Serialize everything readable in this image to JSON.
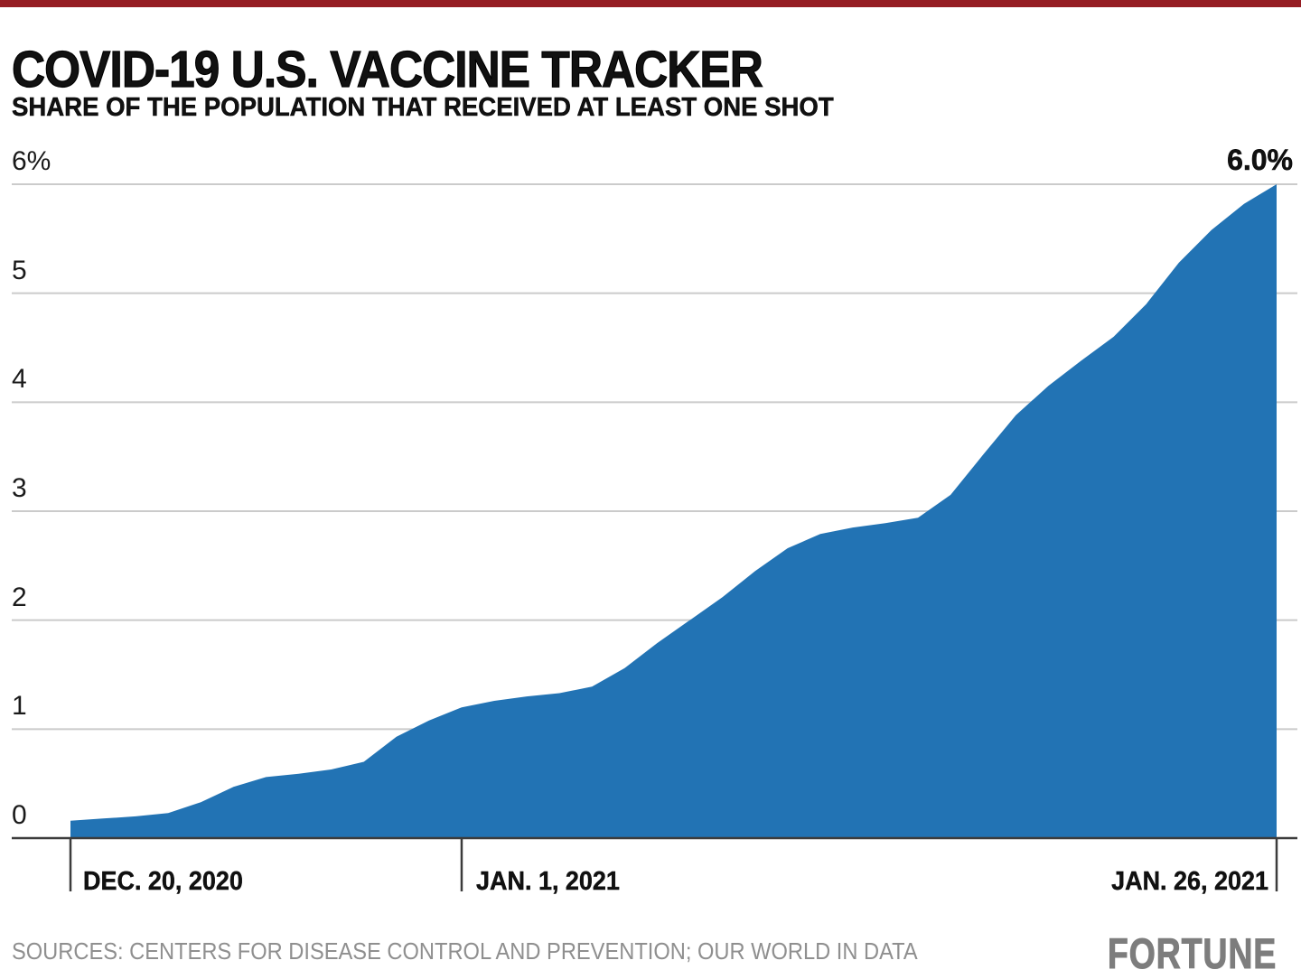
{
  "header": {
    "title": "COVID-19 U.S. VACCINE TRACKER",
    "subtitle": "SHARE OF THE POPULATION THAT RECEIVED AT LEAST ONE SHOT"
  },
  "footer": {
    "sources": "SOURCES: CENTERS FOR DISEASE CONTROL AND PREVENTION; OUR WORLD IN DATA",
    "logo": "FORTUNE"
  },
  "colors": {
    "accent_bar": "#951d23",
    "area": "#2273b4",
    "grid": "#cbcbcb",
    "axis": "#3c3c3c",
    "text": "#111111",
    "sources_gray": "#8f8f8f",
    "logo_gray": "#7d7d7d"
  },
  "chart_data": {
    "type": "area",
    "title": "COVID-19 U.S. VACCINE TRACKER",
    "subtitle": "SHARE OF THE POPULATION THAT RECEIVED AT LEAST ONE SHOT",
    "ylabel": "Share of population with at least one shot (%)",
    "ylim": [
      0,
      6
    ],
    "grid": "on",
    "peak_label": "6.0%",
    "x": [
      "2020-12-20",
      "2020-12-21",
      "2020-12-22",
      "2020-12-23",
      "2020-12-24",
      "2020-12-25",
      "2020-12-26",
      "2020-12-27",
      "2020-12-28",
      "2020-12-29",
      "2020-12-30",
      "2020-12-31",
      "2021-01-01",
      "2021-01-02",
      "2021-01-03",
      "2021-01-04",
      "2021-01-05",
      "2021-01-06",
      "2021-01-07",
      "2021-01-08",
      "2021-01-09",
      "2021-01-10",
      "2021-01-11",
      "2021-01-12",
      "2021-01-13",
      "2021-01-14",
      "2021-01-15",
      "2021-01-16",
      "2021-01-17",
      "2021-01-18",
      "2021-01-19",
      "2021-01-20",
      "2021-01-21",
      "2021-01-22",
      "2021-01-23",
      "2021-01-24",
      "2021-01-25",
      "2021-01-26"
    ],
    "values": [
      0.16,
      0.18,
      0.2,
      0.23,
      0.33,
      0.47,
      0.56,
      0.59,
      0.63,
      0.7,
      0.93,
      1.08,
      1.2,
      1.26,
      1.3,
      1.33,
      1.39,
      1.56,
      1.79,
      2.0,
      2.21,
      2.45,
      2.66,
      2.79,
      2.85,
      2.89,
      2.94,
      3.15,
      3.52,
      3.88,
      4.15,
      4.38,
      4.6,
      4.9,
      5.28,
      5.58,
      5.82,
      6.0
    ],
    "yticks": [
      "6%",
      "5",
      "4",
      "3",
      "2",
      "1",
      "0"
    ],
    "ytick_values": [
      6,
      5,
      4,
      3,
      2,
      1,
      0
    ],
    "xticks": [
      {
        "label": "DEC. 20, 2020",
        "index": 0
      },
      {
        "label": "JAN. 1, 2021",
        "index": 12
      },
      {
        "label": "JAN. 26, 2021",
        "index": 37
      }
    ]
  }
}
